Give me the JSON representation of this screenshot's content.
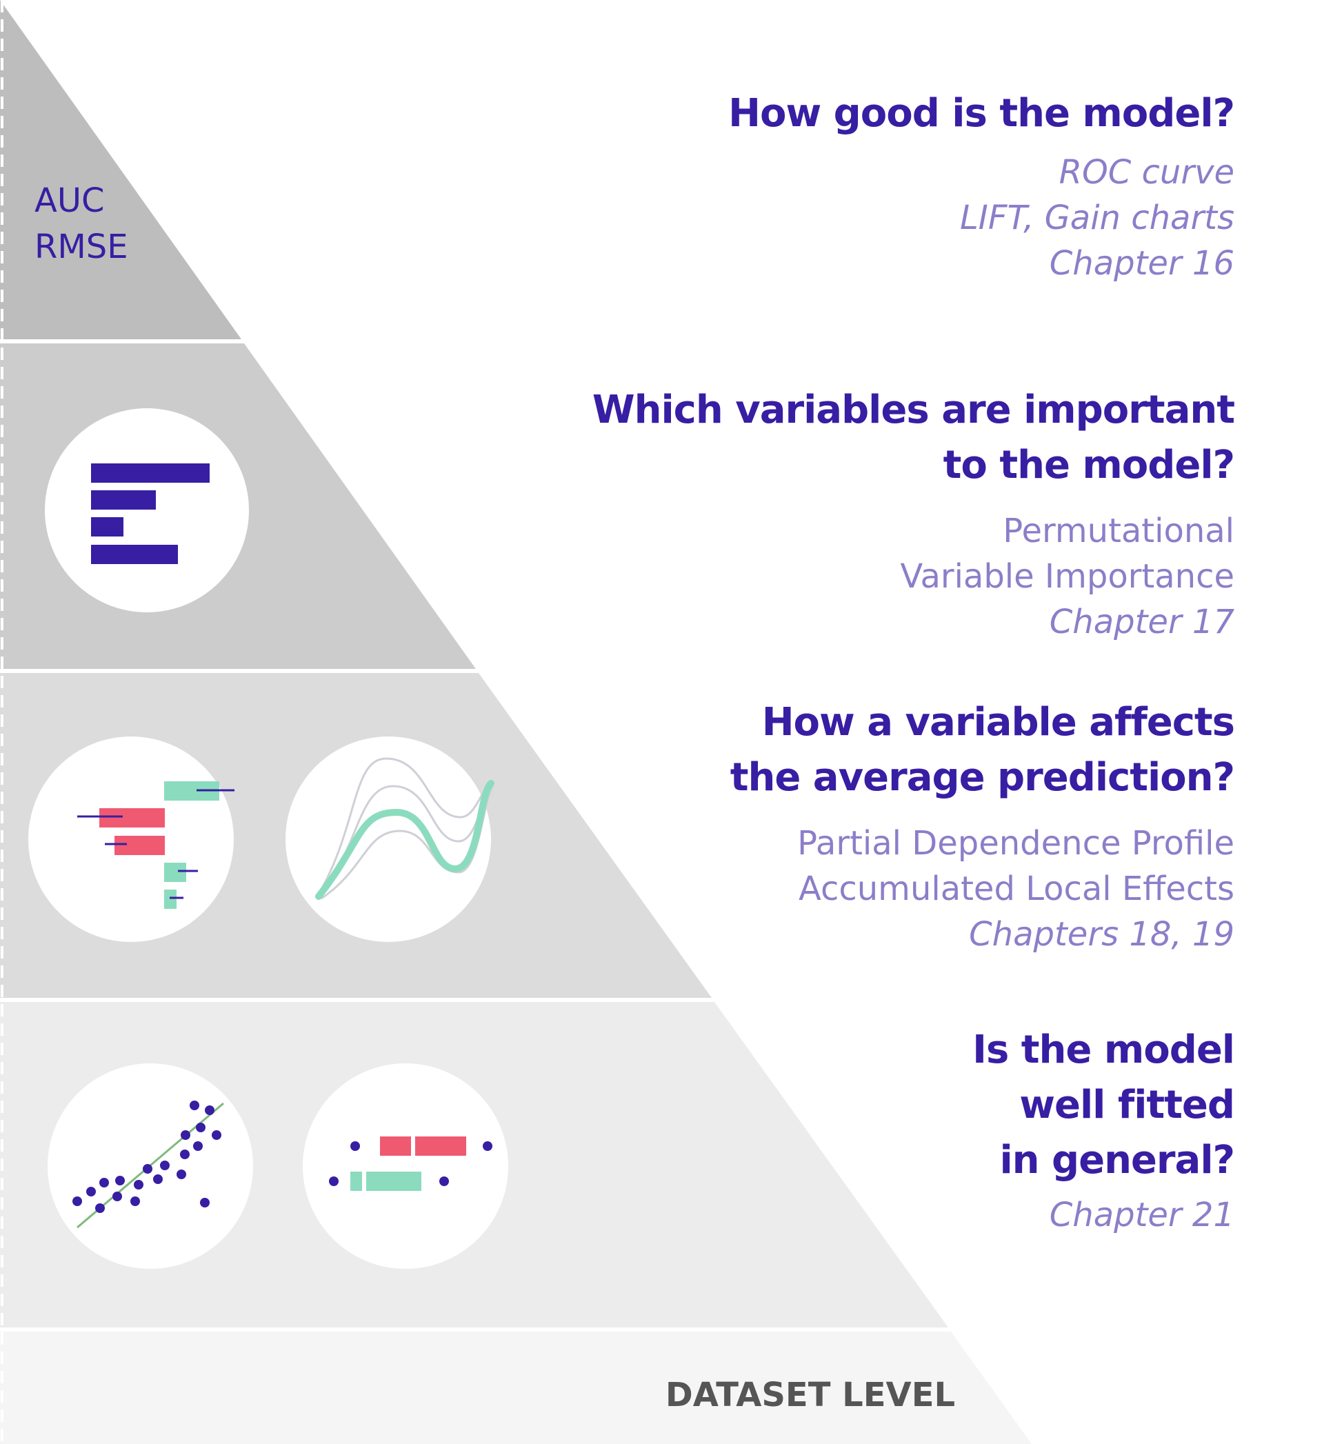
{
  "colors": {
    "title": "#371ea3",
    "subtitle": "#8c7ec9",
    "band1": "#bdbdbd",
    "band2": "#cccccc",
    "band3": "#dcdcdc",
    "band4": "#ececec",
    "band5": "#f5f5f5",
    "red": "#f05a71",
    "green": "#8bdcbe",
    "navy": "#371ea3"
  },
  "level1": {
    "metrics": [
      "AUC",
      "RMSE"
    ],
    "question": "How good is the model?",
    "methods": [
      "ROC curve",
      "LIFT, Gain charts"
    ],
    "chapter": "Chapter 16"
  },
  "level2": {
    "question": [
      "Which variables are important",
      "to the model?"
    ],
    "methods": [
      "Permutational",
      "Variable Importance"
    ],
    "chapter": "Chapter 17",
    "icons": [
      "bar-chart-icon"
    ]
  },
  "level3": {
    "question": [
      "How a variable affects",
      "the average prediction?"
    ],
    "methods": [
      "Partial Dependence Profile",
      "Accumulated Local Effects"
    ],
    "chapter": "Chapters 18, 19",
    "icons": [
      "breakdown-icon",
      "profile-curve-icon"
    ]
  },
  "level4": {
    "question": [
      "Is the model",
      "well fitted",
      "in general?"
    ],
    "chapter": "Chapter 21",
    "icons": [
      "scatter-fit-icon",
      "boxplot-icon"
    ]
  },
  "footer": "DATASET LEVEL"
}
